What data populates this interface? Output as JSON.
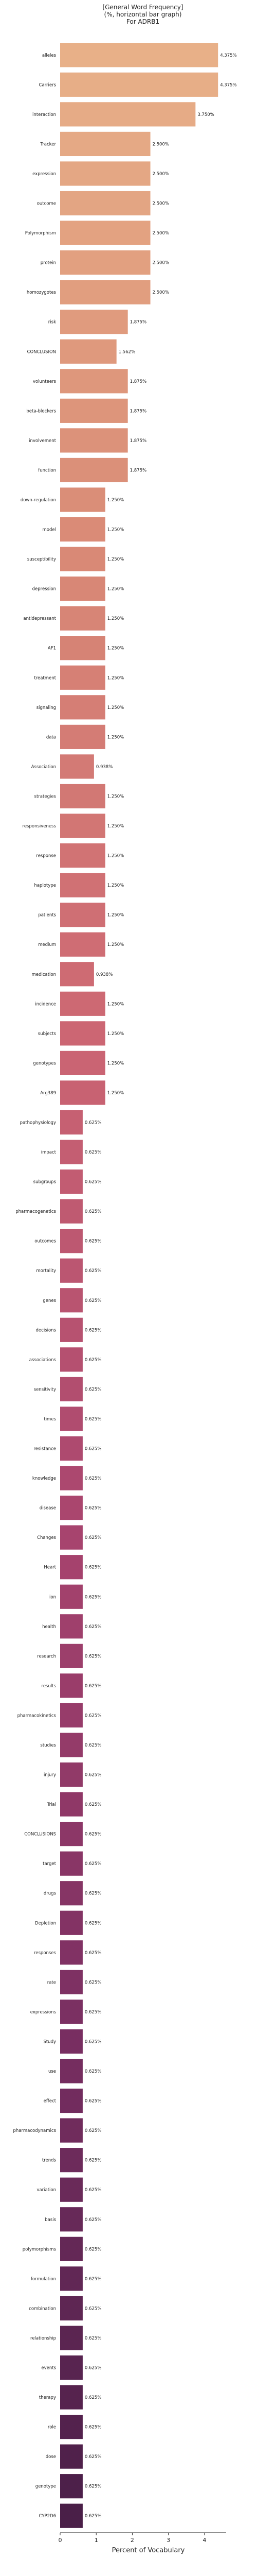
{
  "chart_data": {
    "type": "bar",
    "orientation": "horizontal",
    "title": [
      "[General Word Frequency]",
      "(%, horizontal bar graph)",
      "For ADRB1"
    ],
    "xlabel": "Percent of Vocabulary",
    "ylabel": "",
    "xlim": [
      0,
      4.6
    ],
    "xticks": [
      0,
      1,
      2,
      3,
      4
    ],
    "grid": false,
    "legend": "none",
    "color_scale": [
      "#e8b088",
      "#d98a76",
      "#cc6673",
      "#a8446e",
      "#7a2f62",
      "#4a1f48"
    ],
    "categories": [
      "alleles",
      "Carriers",
      "interaction",
      "Tracker",
      "expression",
      "outcome",
      "Polymorphism",
      "protein",
      "homozygotes",
      "risk",
      "CONCLUSION",
      "volunteers",
      "beta-blockers",
      "involvement",
      "function",
      "down-regulation",
      "model",
      "susceptibility",
      "depression",
      "antidepressant",
      "AF1",
      "treatment",
      "signaling",
      "data",
      "Association",
      "strategies",
      "responsiveness",
      "response",
      "haplotype",
      "patients",
      "medium",
      "medication",
      "incidence",
      "subjects",
      "genotypes",
      "Arg389",
      "pathophysiology",
      "impact",
      "subgroups",
      "pharmacogenetics",
      "outcomes",
      "mortality",
      "genes",
      "decisions",
      "associations",
      "sensitivity",
      "times",
      "resistance",
      "knowledge",
      "disease",
      "Changes",
      "Heart",
      "ion",
      "health",
      "research",
      "results",
      "pharmacokinetics",
      "studies",
      "injury",
      "Trial",
      "CONCLUSIONS",
      "target",
      "drugs",
      "Depletion",
      "responses",
      "rate",
      "expressions",
      "Study",
      "use",
      "effect",
      "pharmacodynamics",
      "trends",
      "variation",
      "basis",
      "polymorphisms",
      "formulation",
      "combination",
      "relationship",
      "events",
      "therapy",
      "role",
      "dose",
      "genotype",
      "CYP2D6"
    ],
    "values": [
      4.375,
      4.375,
      3.75,
      2.5,
      2.5,
      2.5,
      2.5,
      2.5,
      2.5,
      1.875,
      1.562,
      1.875,
      1.875,
      1.875,
      1.875,
      1.25,
      1.25,
      1.25,
      1.25,
      1.25,
      1.25,
      1.25,
      1.25,
      1.25,
      0.938,
      1.25,
      1.25,
      1.25,
      1.25,
      1.25,
      1.25,
      0.938,
      1.25,
      1.25,
      1.25,
      1.25,
      0.625,
      0.625,
      0.625,
      0.625,
      0.625,
      0.625,
      0.625,
      0.625,
      0.625,
      0.625,
      0.625,
      0.625,
      0.625,
      0.625,
      0.625,
      0.625,
      0.625,
      0.625,
      0.625,
      0.625,
      0.625,
      0.625,
      0.625,
      0.625,
      0.625,
      0.625,
      0.625,
      0.625,
      0.625,
      0.625,
      0.625,
      0.625,
      0.625,
      0.625,
      0.625,
      0.625,
      0.625,
      0.625,
      0.625,
      0.625,
      0.625,
      0.625,
      0.625,
      0.625,
      0.625,
      0.625,
      0.625,
      0.625
    ],
    "value_labels": [
      "4.375%",
      "4.375%",
      "3.750%",
      "2.500%",
      "2.500%",
      "2.500%",
      "2.500%",
      "2.500%",
      "2.500%",
      "1.875%",
      "1.562%",
      "1.875%",
      "1.875%",
      "1.875%",
      "1.875%",
      "1.250%",
      "1.250%",
      "1.250%",
      "1.250%",
      "1.250%",
      "1.250%",
      "1.250%",
      "1.250%",
      "1.250%",
      "0.938%",
      "1.250%",
      "1.250%",
      "1.250%",
      "1.250%",
      "1.250%",
      "1.250%",
      "0.938%",
      "1.250%",
      "1.250%",
      "1.250%",
      "1.250%",
      "0.625%",
      "0.625%",
      "0.625%",
      "0.625%",
      "0.625%",
      "0.625%",
      "0.625%",
      "0.625%",
      "0.625%",
      "0.625%",
      "0.625%",
      "0.625%",
      "0.625%",
      "0.625%",
      "0.625%",
      "0.625%",
      "0.625%",
      "0.625%",
      "0.625%",
      "0.625%",
      "0.625%",
      "0.625%",
      "0.625%",
      "0.625%",
      "0.625%",
      "0.625%",
      "0.625%",
      "0.625%",
      "0.625%",
      "0.625%",
      "0.625%",
      "0.625%",
      "0.625%",
      "0.625%",
      "0.625%",
      "0.625%",
      "0.625%",
      "0.625%",
      "0.625%",
      "0.625%",
      "0.625%",
      "0.625%",
      "0.625%",
      "0.625%",
      "0.625%",
      "0.625%",
      "0.625%",
      "0.625%"
    ]
  }
}
